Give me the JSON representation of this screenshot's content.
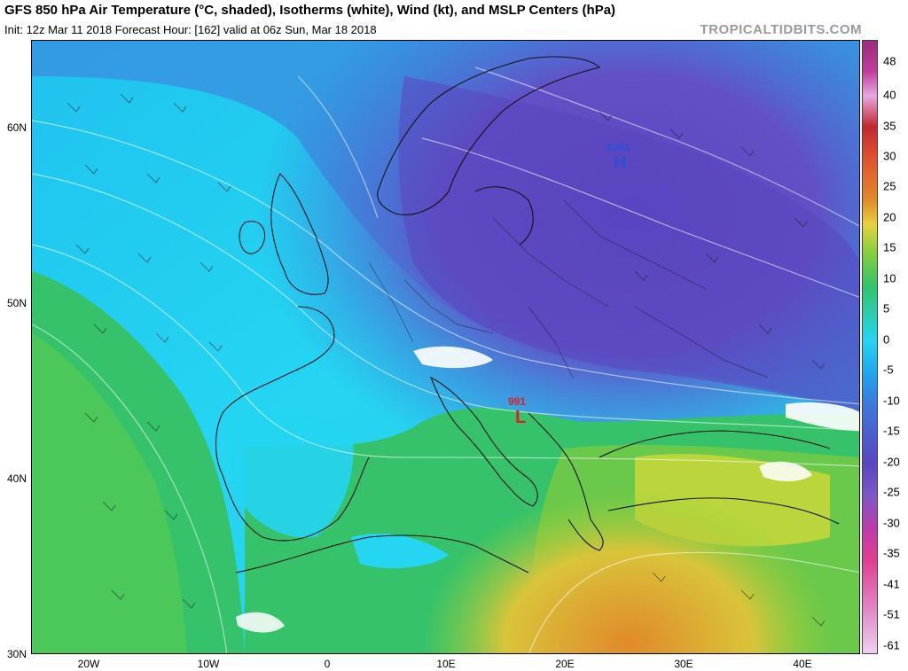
{
  "header": {
    "title": "GFS 850 hPa Air Temperature (°C, shaded), Isotherms (white), Wind (kt), and MSLP Centers (hPa)",
    "subtitle": "Init: 12z Mar 11 2018   Forecast Hour: [162]   valid at 06z Sun, Mar 18 2018",
    "brand": "TROPICALTIDBITS.COM"
  },
  "map": {
    "lat_labels": [
      "60N",
      "50N",
      "40N",
      "30N"
    ],
    "lon_labels": [
      "20W",
      "10W",
      "0",
      "10E",
      "20E",
      "30E",
      "40E"
    ],
    "pressure_centers": [
      {
        "type": "H",
        "value": "1041",
        "color": "#2b50d8"
      },
      {
        "type": "L",
        "value": "991",
        "color": "#e02020"
      }
    ]
  },
  "colorbar": {
    "labels": [
      "48",
      "40",
      "35",
      "30",
      "25",
      "20",
      "15",
      "10",
      "5",
      "0",
      "-5",
      "-10",
      "-15",
      "-20",
      "-25",
      "-30",
      "-35",
      "-41",
      "-51",
      "-61"
    ],
    "colors": {
      "warm_high": "#9b2c7c",
      "warm": "#e08a2a",
      "mild": "#8fd03a",
      "cool": "#35c26a",
      "zero": "#22d8f0",
      "cold": "#3a7bdc",
      "colder": "#5a45c0",
      "coldest": "#c23aa8"
    }
  }
}
